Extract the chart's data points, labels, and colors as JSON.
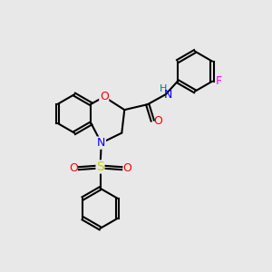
{
  "background_color": "#e8e8e8",
  "bond_color": "#000000",
  "atom_colors": {
    "O": "#ff0000",
    "N": "#0000ff",
    "S": "#cccc00",
    "F": "#ff00ff",
    "H": "#008080",
    "C": "#000000"
  },
  "figsize": [
    3.0,
    3.0
  ],
  "dpi": 100,
  "xlim": [
    -0.5,
    5.8
  ],
  "ylim": [
    -3.8,
    3.2
  ]
}
